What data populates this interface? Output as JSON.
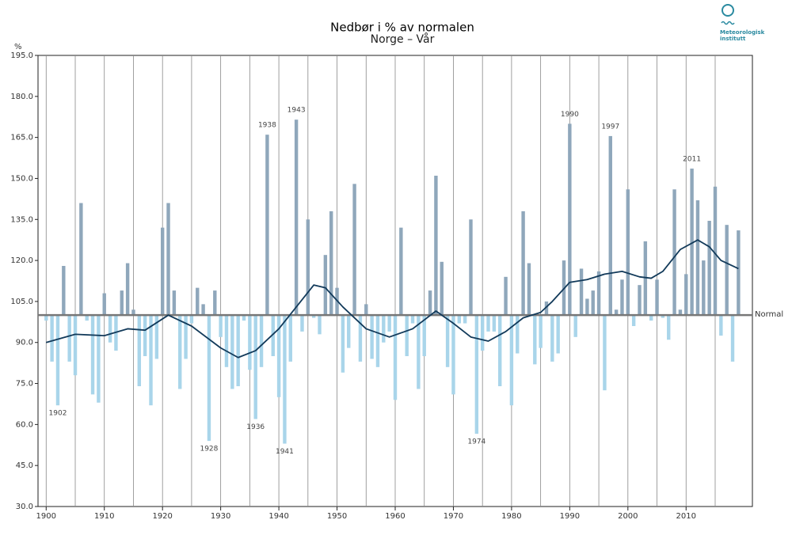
{
  "chart_data": {
    "type": "bar",
    "title": "Nedbør i % av normalen",
    "subtitle": "Norge – Vår",
    "y_label": "%",
    "logo": [
      "Meteorologisk",
      "institutt"
    ],
    "normal": 100,
    "normal_label": "Normal",
    "color_above": "#8fa7bb",
    "color_below": "#a9d5ea",
    "x": [
      1900,
      1901,
      1902,
      1903,
      1904,
      1905,
      1906,
      1907,
      1908,
      1909,
      1910,
      1911,
      1912,
      1913,
      1914,
      1915,
      1916,
      1917,
      1918,
      1919,
      1920,
      1921,
      1922,
      1923,
      1924,
      1925,
      1926,
      1927,
      1928,
      1929,
      1930,
      1931,
      1932,
      1933,
      1934,
      1935,
      1936,
      1937,
      1938,
      1939,
      1940,
      1941,
      1942,
      1943,
      1944,
      1945,
      1946,
      1947,
      1948,
      1949,
      1950,
      1951,
      1952,
      1953,
      1954,
      1955,
      1956,
      1957,
      1958,
      1959,
      1960,
      1961,
      1962,
      1963,
      1964,
      1965,
      1966,
      1967,
      1968,
      1969,
      1970,
      1971,
      1972,
      1973,
      1974,
      1975,
      1976,
      1977,
      1978,
      1979,
      1980,
      1981,
      1982,
      1983,
      1984,
      1985,
      1986,
      1987,
      1988,
      1989,
      1990,
      1991,
      1992,
      1993,
      1994,
      1995,
      1996,
      1997,
      1998,
      1999,
      2000,
      2001,
      2002,
      2003,
      2004,
      2005,
      2006,
      2007,
      2008,
      2009,
      2010,
      2011,
      2012,
      2013,
      2014,
      2015,
      2016,
      2017,
      2018,
      2019
    ],
    "values": [
      98,
      83,
      67,
      118,
      83,
      78,
      141,
      98,
      71,
      68,
      108,
      90,
      87,
      109,
      119,
      102,
      74,
      85,
      67,
      84,
      132,
      141,
      109,
      73,
      84,
      97,
      110,
      104,
      54,
      109,
      92,
      81,
      73,
      74,
      98,
      80,
      62,
      81,
      166,
      85,
      70,
      53,
      83,
      171.5,
      94,
      135,
      99,
      93,
      122,
      138,
      110,
      79,
      88,
      148,
      83,
      104,
      84,
      81,
      90,
      94,
      69,
      132,
      85,
      97,
      73,
      85,
      109,
      151,
      119.5,
      81,
      71,
      97,
      97,
      135,
      56.6,
      87,
      94,
      94,
      74,
      114,
      67,
      86,
      138,
      119,
      82,
      88,
      105,
      83,
      86,
      120,
      170,
      92,
      117,
      106,
      109,
      116,
      72.5,
      165.5,
      102,
      113,
      146,
      96,
      111,
      127,
      98,
      113,
      99,
      91,
      146,
      102,
      115,
      153.6,
      142,
      120,
      134.5,
      147,
      92.5,
      133,
      83,
      131
    ],
    "trend": {
      "color": "#123a5a",
      "x": [
        1900,
        1905,
        1910,
        1914,
        1917,
        1921,
        1925,
        1930,
        1933,
        1936,
        1940,
        1943,
        1946,
        1948,
        1951,
        1955,
        1959,
        1963,
        1967,
        1970,
        1973,
        1976,
        1979,
        1982,
        1985,
        1987,
        1990,
        1993,
        1996,
        1999,
        2002,
        2004,
        2006,
        2009,
        2012,
        2014,
        2016,
        2019
      ],
      "values": [
        90,
        93,
        92.5,
        95,
        94.5,
        100,
        96,
        88,
        84.5,
        87,
        95,
        103,
        111,
        110,
        103,
        95,
        92,
        95,
        101.5,
        97,
        92,
        90.5,
        94,
        99,
        101,
        105,
        112,
        113,
        115,
        116,
        114,
        113.5,
        116,
        124,
        127.5,
        125,
        120,
        117
      ]
    },
    "annotations": [
      {
        "label": "1902",
        "x": 1902
      },
      {
        "label": "1928",
        "x": 1928
      },
      {
        "label": "1936",
        "x": 1936
      },
      {
        "label": "1938",
        "x": 1938
      },
      {
        "label": "1941",
        "x": 1941
      },
      {
        "label": "1943",
        "x": 1943
      },
      {
        "label": "1974",
        "x": 1974
      },
      {
        "label": "1990",
        "x": 1990
      },
      {
        "label": "1997",
        "x": 1997
      },
      {
        "label": "2011",
        "x": 2011
      }
    ],
    "xlim": [
      1898.6,
      2021.4
    ],
    "xticks": [
      1900,
      1910,
      1920,
      1930,
      1940,
      1950,
      1960,
      1970,
      1980,
      1990,
      2000,
      2010
    ],
    "xgrid": [
      1900,
      1905,
      1910,
      1915,
      1920,
      1925,
      1930,
      1935,
      1940,
      1945,
      1950,
      1955,
      1960,
      1965,
      1970,
      1975,
      1980,
      1985,
      1990,
      1995,
      2000,
      2005,
      2010,
      2015
    ],
    "ylim": [
      30,
      195
    ],
    "yticks": [
      {
        "value": 30,
        "label": "30.0"
      },
      {
        "value": 45,
        "label": "45.0"
      },
      {
        "value": 60,
        "label": "60.0"
      },
      {
        "value": 75,
        "label": "75.0"
      },
      {
        "value": 90,
        "label": "90.0"
      },
      {
        "value": 105,
        "label": "105.0"
      },
      {
        "value": 120,
        "label": "120.0"
      },
      {
        "value": 135,
        "label": "135.0"
      },
      {
        "value": 150,
        "label": "150.0"
      },
      {
        "value": 165,
        "label": "165.0"
      },
      {
        "value": 180,
        "label": "180.0"
      },
      {
        "value": 195,
        "label": "195.0"
      }
    ]
  }
}
